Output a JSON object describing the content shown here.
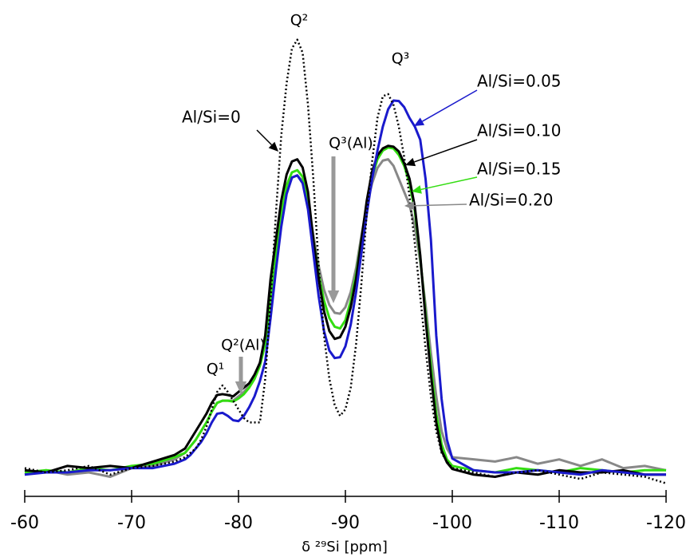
{
  "chart_data": {
    "type": "line",
    "x_label": "δ ²⁹Si [ppm]",
    "annotations": [
      "Q²",
      "Q³",
      "Q¹",
      "Q²(Al)",
      "Q³(Al)"
    ],
    "xlim": [
      -60,
      -120
    ],
    "ylim": [
      -5,
      105
    ],
    "xticks": [
      -60,
      -70,
      -80,
      -90,
      -100,
      -110,
      -120
    ],
    "x": [
      -60,
      -62,
      -64,
      -66,
      -68,
      -70,
      -72,
      -74,
      -75,
      -75.5,
      -76,
      -76.5,
      -77,
      -77.5,
      -78,
      -78.5,
      -79,
      -79.5,
      -80,
      -80.5,
      -81,
      -81.5,
      -82,
      -82.5,
      -83,
      -83.5,
      -84,
      -84.5,
      -85,
      -85.5,
      -86,
      -86.5,
      -87,
      -87.5,
      -88,
      -88.5,
      -89,
      -89.5,
      -90,
      -90.5,
      -91,
      -91.5,
      -92,
      -92.5,
      -93,
      -93.5,
      -94,
      -94.5,
      -95,
      -95.5,
      -96,
      -96.5,
      -97,
      -97.5,
      -98,
      -98.5,
      -99,
      -99.5,
      -100,
      -102,
      -104,
      -106,
      -108,
      -110,
      -112,
      -114,
      -116,
      -118,
      -120
    ],
    "series": [
      {
        "name": "Al/Si=0",
        "color": "#000000",
        "line_style": "dotted",
        "values": [
          1.5,
          0.5,
          1,
          2,
          0,
          1.5,
          2,
          3,
          4,
          5,
          6,
          8,
          11,
          15,
          19,
          20.5,
          19,
          17,
          15,
          13,
          12,
          12,
          12,
          22,
          40,
          60,
          78,
          90,
          98,
          100,
          97,
          85,
          68,
          48,
          32,
          22,
          16,
          13.5,
          15,
          20,
          30,
          44,
          60,
          72,
          82,
          87,
          87.5,
          85,
          80,
          73,
          64,
          53,
          41,
          29,
          18,
          10,
          5,
          3,
          1.5,
          0.5,
          -0.5,
          0.5,
          1,
          0,
          -1,
          0.5,
          0,
          -0.5,
          -2
        ]
      },
      {
        "name": "Al/Si=0.05",
        "color": "#1a1acc",
        "line_style": "solid",
        "values": [
          0,
          0.5,
          0.5,
          1,
          1,
          1.5,
          1.5,
          2.5,
          3.5,
          4.5,
          6,
          7.5,
          9.5,
          12,
          14,
          14.2,
          13.5,
          12.5,
          12.3,
          13.5,
          15.5,
          18,
          21.5,
          26,
          36,
          47,
          57,
          64.5,
          68.3,
          68.8,
          67,
          61,
          51,
          41,
          33,
          28.5,
          26.8,
          27,
          29.5,
          34.5,
          42,
          51,
          60,
          68,
          74.5,
          80,
          84,
          86,
          85.9,
          84.5,
          82,
          80,
          77,
          68,
          54,
          32,
          17.4,
          8,
          3.7,
          1,
          0.5,
          0.5,
          1,
          0.5,
          0,
          1,
          0.5,
          0,
          0
        ]
      },
      {
        "name": "Al/Si=0.10",
        "color": "#000000",
        "line_style": "solid",
        "values": [
          1,
          0.5,
          2,
          1.5,
          2,
          1.5,
          3,
          4.5,
          6,
          8,
          10,
          12,
          14,
          16.5,
          18.3,
          18.5,
          18.3,
          18,
          19,
          20,
          21,
          23,
          25.7,
          32,
          45,
          54,
          63,
          69,
          72,
          72.5,
          70.6,
          65,
          54,
          45,
          37.6,
          33,
          31.2,
          31.6,
          34,
          38.5,
          45,
          54,
          63,
          69.7,
          73.4,
          75,
          75.6,
          75.4,
          74.3,
          71.6,
          68,
          61.5,
          50.5,
          35.8,
          23,
          12,
          5.5,
          2.8,
          1.3,
          0,
          -0.5,
          0.5,
          0,
          1,
          0.5,
          0.5,
          1,
          0,
          0
        ]
      },
      {
        "name": "Al/Si=0.15",
        "color": "#33dd11",
        "line_style": "solid",
        "values": [
          0.5,
          1,
          0.5,
          1.5,
          1,
          2,
          2.5,
          4,
          5,
          6.5,
          8,
          10,
          12,
          14.5,
          16.5,
          17,
          17,
          16.8,
          17.5,
          18.5,
          20,
          22,
          25,
          30,
          41,
          51,
          60,
          66.5,
          69.5,
          70,
          68.5,
          63.5,
          54,
          46,
          40,
          36,
          34,
          33.6,
          35.5,
          40,
          46,
          54,
          62,
          68.5,
          72.5,
          74.5,
          75.2,
          75,
          73.5,
          71,
          67,
          60.5,
          50,
          37,
          25,
          14,
          7,
          3.5,
          2,
          1,
          0.5,
          1.5,
          1,
          0.5,
          1.5,
          1,
          0.5,
          1,
          1
        ]
      },
      {
        "name": "Al/Si=0.20",
        "color": "#888888",
        "line_style": "solid",
        "values": [
          0,
          1,
          0,
          0.5,
          -0.5,
          1.5,
          2,
          3.5,
          5,
          6.5,
          8,
          10,
          12,
          14.5,
          16.5,
          17,
          17,
          17,
          18,
          19,
          20.5,
          22.5,
          25.5,
          30,
          40,
          50,
          58,
          65,
          68.3,
          68.8,
          67.5,
          63,
          55,
          48,
          42.5,
          39,
          37.2,
          37,
          38.5,
          42,
          47.5,
          55,
          62,
          67,
          70.5,
          72.2,
          72.5,
          71,
          68,
          65,
          62,
          57,
          49,
          39,
          28,
          18,
          10,
          6,
          4,
          3.5,
          3,
          4,
          2.5,
          3.5,
          2,
          3.5,
          1.5,
          2,
          1
        ]
      }
    ]
  }
}
